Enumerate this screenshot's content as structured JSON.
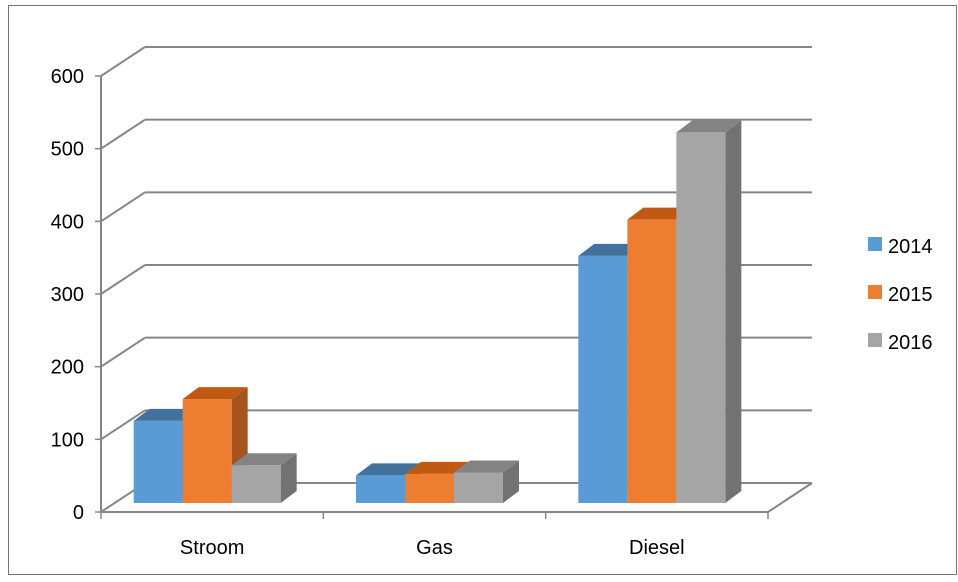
{
  "chart_data": {
    "type": "bar",
    "title": "",
    "xlabel": "",
    "ylabel": "",
    "categories": [
      "Stroom",
      "Gas",
      "Diesel"
    ],
    "series": [
      {
        "name": "2014",
        "values": [
          113,
          38,
          340
        ]
      },
      {
        "name": "2015",
        "values": [
          143,
          40,
          390
        ]
      },
      {
        "name": "2016",
        "values": [
          52,
          42,
          510
        ]
      }
    ],
    "ylim": [
      0,
      600
    ],
    "yticks": [
      "0",
      "100",
      "200",
      "300",
      "400",
      "500",
      "600"
    ],
    "grid": true,
    "legend_position": "right",
    "colors": {
      "2014": {
        "front": "#5b9bd5",
        "top": "#41719c",
        "side": "#3b6a92"
      },
      "2015": {
        "front": "#ed7d31",
        "top": "#c05a12",
        "side": "#a5541e"
      },
      "2016": {
        "front": "#a5a5a5",
        "top": "#838383",
        "side": "#727272"
      },
      "grid": "#868686",
      "frame": "#767676"
    }
  }
}
